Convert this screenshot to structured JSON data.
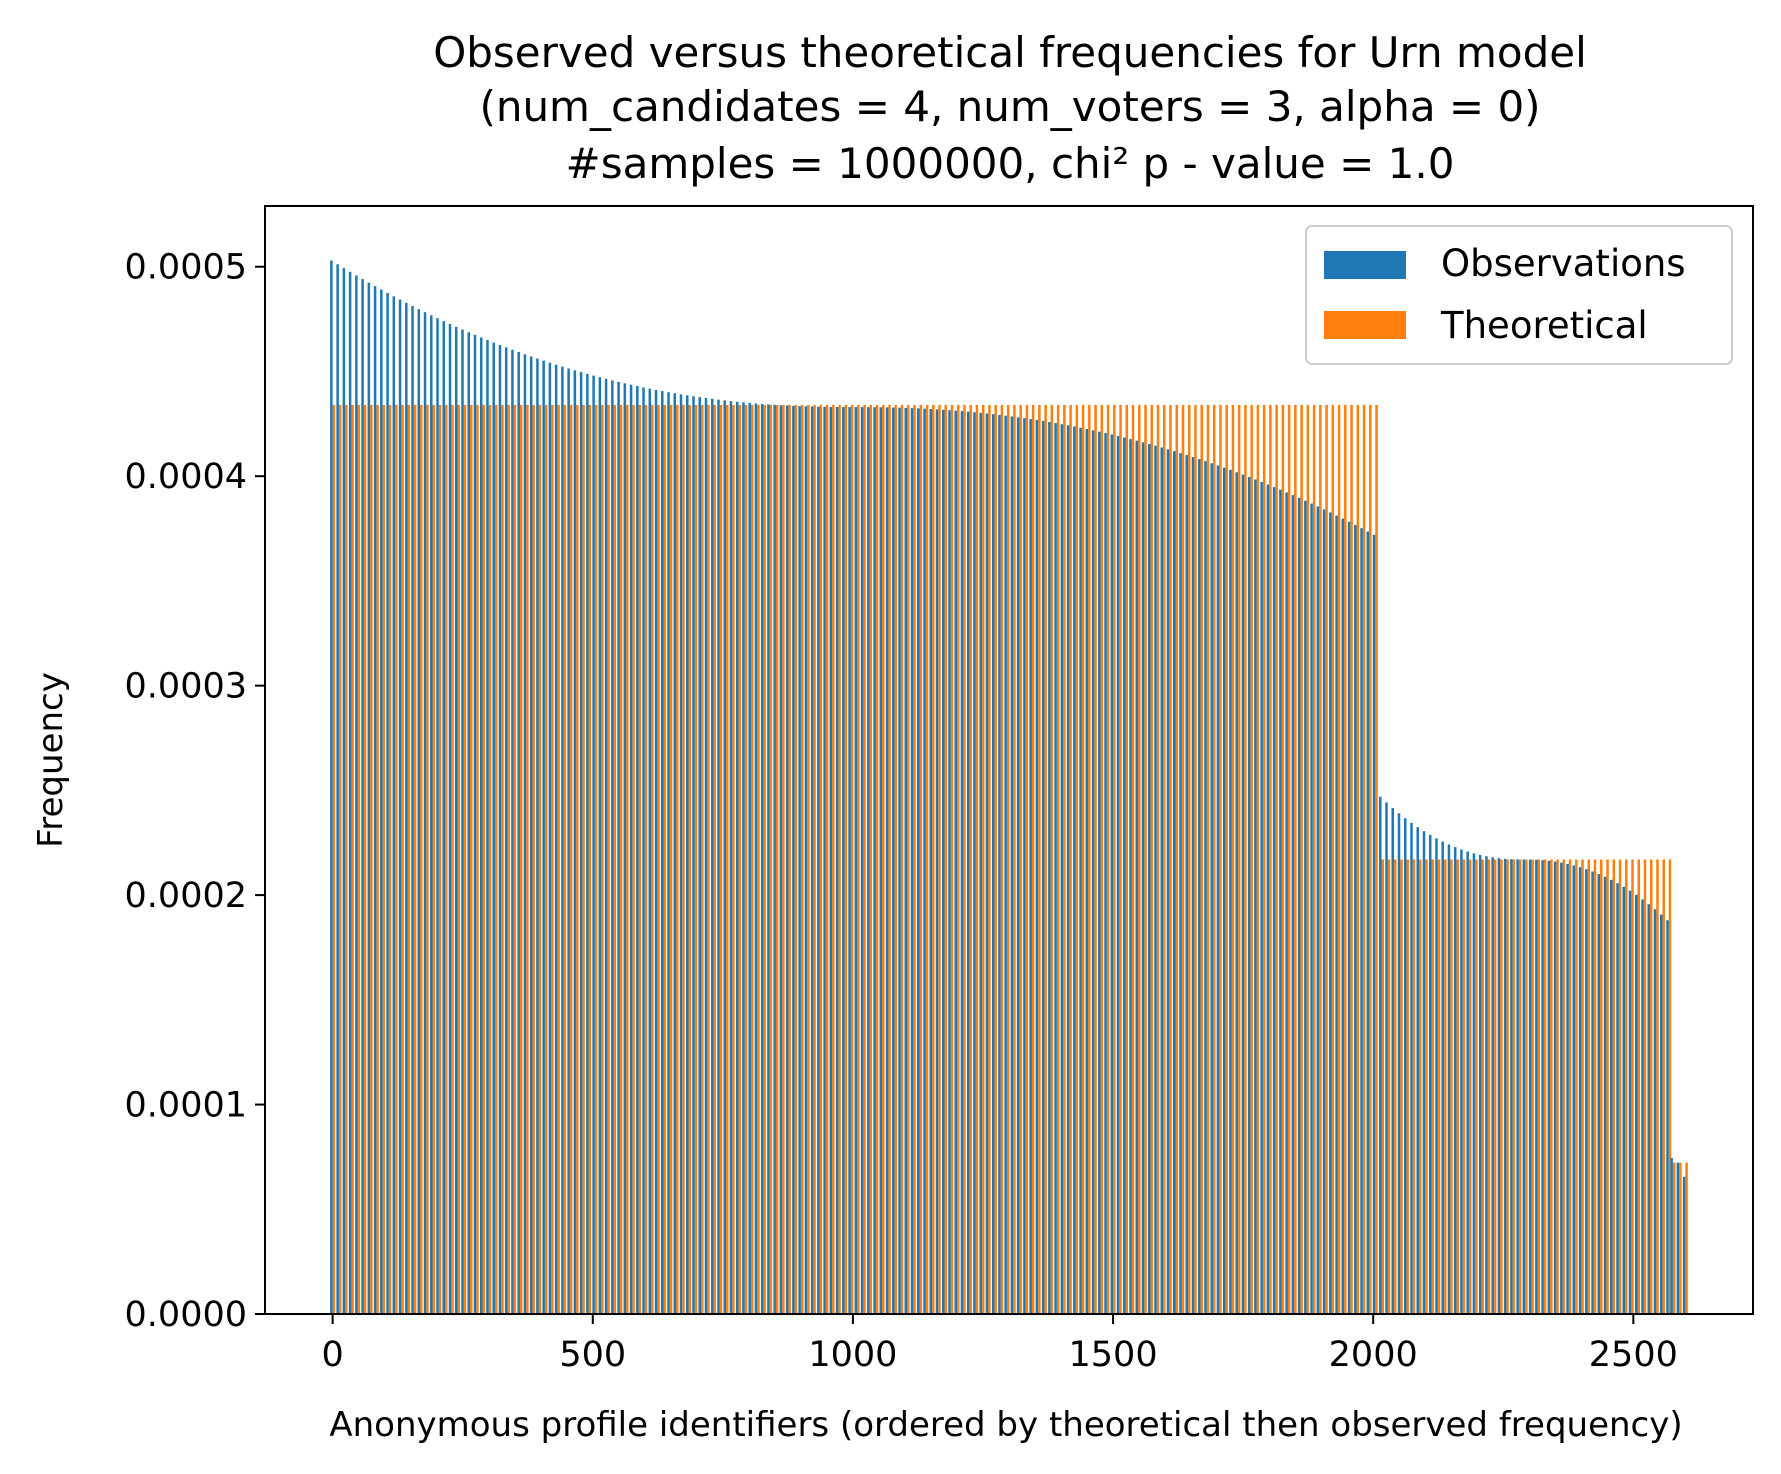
{
  "chart_data": {
    "type": "bar",
    "title": [
      "Observed versus theoretical frequencies for Urn model",
      "(num_candidates = 4, num_voters = 3, alpha = 0)",
      "#samples = 1000000, chi² p - value = 1.0"
    ],
    "xlabel": "Anonymous profile identifiers (ordered by theoretical then observed frequency)",
    "ylabel": "Frequency",
    "xlim": [
      -130,
      2730
    ],
    "ylim": [
      0,
      0.000529
    ],
    "x_ticks": [
      0,
      500,
      1000,
      1500,
      2000,
      2500
    ],
    "x_tick_labels": [
      "0",
      "500",
      "1000",
      "1500",
      "2000",
      "2500"
    ],
    "y_ticks": [
      0,
      0.0001,
      0.0002,
      0.0003,
      0.0004,
      0.0005
    ],
    "y_tick_labels": [
      "0.0000",
      "0.0001",
      "0.0002",
      "0.0003",
      "0.0004",
      "0.0005"
    ],
    "legend": {
      "placement": "top-right",
      "entries": [
        "Observations",
        "Theoretical"
      ]
    },
    "colors": {
      "observations": "#1f77b4",
      "theoretical": "#ff7f0e"
    },
    "groups": [
      {
        "x_start": 0,
        "x_end": 2015,
        "theoretical": 0.000434,
        "observed_start": 0.000503,
        "observed_mid": 0.000433,
        "observed_end": 0.000372
      },
      {
        "x_start": 2016,
        "x_end": 2575,
        "theoretical": 0.000217,
        "observed_start": 0.000247,
        "observed_mid": 0.000217,
        "observed_end": 0.000188
      },
      {
        "x_start": 2576,
        "x_end": 2600,
        "theoretical": 7.23e-05,
        "observed_start": 7.45e-05,
        "observed_mid": 7.23e-05,
        "observed_end": 6.55e-05
      }
    ],
    "series": [
      {
        "name": "Observations"
      },
      {
        "name": "Theoretical"
      }
    ]
  }
}
